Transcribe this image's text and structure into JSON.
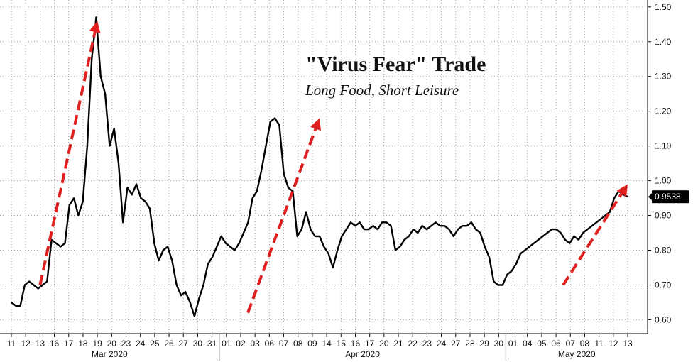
{
  "chart_data": {
    "type": "line",
    "title": "\"Virus Fear\" Trade",
    "subtitle": "Long Food, Short Leisure",
    "xlabel": "",
    "ylabel": "",
    "ylim": [
      0.56,
      1.52
    ],
    "y_ticks": [
      "1.50",
      "1.40",
      "1.30",
      "1.20",
      "1.10",
      "1.00",
      "0.90",
      "0.80",
      "0.70",
      "0.60"
    ],
    "y_tick_values": [
      1.5,
      1.4,
      1.3,
      1.2,
      1.1,
      1.0,
      0.9,
      0.8,
      0.7,
      0.6
    ],
    "x_tick_labels": [
      "11",
      "12",
      "13",
      "16",
      "17",
      "18",
      "19",
      "20",
      "23",
      "24",
      "25",
      "26",
      "27",
      "30",
      "31",
      "01",
      "02",
      "03",
      "06",
      "07",
      "08",
      "09",
      "14",
      "15",
      "16",
      "17",
      "20",
      "21",
      "22",
      "23",
      "24",
      "27",
      "28",
      "29",
      "30",
      "01",
      "04",
      "05",
      "06",
      "07",
      "08",
      "11",
      "12",
      "13"
    ],
    "month_labels": [
      "Mar 2020",
      "Apr 2020",
      "May 2020"
    ],
    "last_value_label": "0.9538",
    "last_value": 0.9538,
    "grid": true,
    "colors": {
      "line": "#000000",
      "arrow": "#e02020",
      "label_bg": "#000000"
    },
    "series": [
      {
        "values": [
          0.65,
          0.64,
          0.64,
          0.7,
          0.71,
          0.7,
          0.69,
          0.7,
          0.71,
          0.83,
          0.82,
          0.81,
          0.82,
          0.93,
          0.95,
          0.9,
          0.94,
          1.1,
          1.35,
          1.47,
          1.3,
          1.25,
          1.1,
          1.15,
          1.05,
          0.88,
          0.98,
          0.96,
          0.99,
          0.95,
          0.94,
          0.92,
          0.82,
          0.77,
          0.8,
          0.81,
          0.77,
          0.7,
          0.67,
          0.68,
          0.65,
          0.61,
          0.66,
          0.7,
          0.76,
          0.78,
          0.81,
          0.84,
          0.82,
          0.81,
          0.8,
          0.82,
          0.85,
          0.88,
          0.95,
          0.97,
          1.03,
          1.1,
          1.17,
          1.18,
          1.16,
          1.02,
          0.98,
          0.97,
          0.84,
          0.86,
          0.91,
          0.86,
          0.84,
          0.84,
          0.81,
          0.79,
          0.75,
          0.8,
          0.84,
          0.86,
          0.88,
          0.87,
          0.88,
          0.86,
          0.86,
          0.87,
          0.86,
          0.88,
          0.88,
          0.87,
          0.8,
          0.81,
          0.83,
          0.84,
          0.86,
          0.85,
          0.87,
          0.86,
          0.87,
          0.88,
          0.87,
          0.87,
          0.86,
          0.84,
          0.86,
          0.87,
          0.87,
          0.88,
          0.86,
          0.85,
          0.81,
          0.78,
          0.71,
          0.7,
          0.7,
          0.73,
          0.74,
          0.76,
          0.79,
          0.8,
          0.81,
          0.82,
          0.83,
          0.84,
          0.85,
          0.86,
          0.86,
          0.85,
          0.83,
          0.82,
          0.84,
          0.83,
          0.85,
          0.86,
          0.87,
          0.88,
          0.89,
          0.9,
          0.91,
          0.95,
          0.97,
          0.96,
          0.9538
        ]
      }
    ],
    "annotations": [
      {
        "type": "arrow",
        "from": [
          2.0,
          0.7
        ],
        "to": [
          6.0,
          1.46
        ]
      },
      {
        "type": "arrow",
        "from": [
          16.5,
          0.62
        ],
        "to": [
          21.5,
          1.18
        ]
      },
      {
        "type": "arrow",
        "from": [
          38.5,
          0.7
        ],
        "to": [
          43.0,
          0.99
        ]
      }
    ]
  }
}
